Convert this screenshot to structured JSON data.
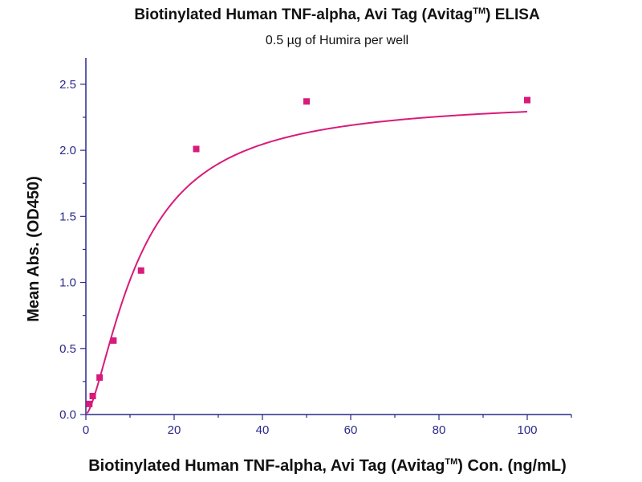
{
  "chart_data": {
    "type": "scatter",
    "title": "Biotinylated Human TNF-alpha, Avi Tag (Avitag",
    "title_superscript": "TM",
    "title_suffix": ") ELISA",
    "subtitle": "0.5 µg of Humira per well",
    "xlabel": "Biotinylated Human TNF-alpha, Avi Tag (Avitag",
    "xlabel_superscript": "TM",
    "xlabel_suffix": ") Con. (ng/mL)",
    "ylabel": "Mean Abs. (OD450)",
    "xlim": [
      0,
      110
    ],
    "ylim": [
      0,
      2.7
    ],
    "x_ticks": [
      0,
      20,
      40,
      60,
      80,
      100
    ],
    "y_ticks": [
      0.0,
      0.5,
      1.0,
      1.5,
      2.0,
      2.5
    ],
    "x_minor_ticks": [
      10,
      30,
      50,
      70,
      90,
      110
    ],
    "y_minor_ticks": [
      0.25,
      0.75,
      1.25,
      1.75,
      2.25
    ],
    "grid": false,
    "series": [
      {
        "points": [
          {
            "x": 0.78,
            "y": 0.08
          },
          {
            "x": 1.56,
            "y": 0.14
          },
          {
            "x": 3.12,
            "y": 0.28
          },
          {
            "x": 6.25,
            "y": 0.56
          },
          {
            "x": 12.5,
            "y": 1.09
          },
          {
            "x": 25,
            "y": 2.01
          },
          {
            "x": 50,
            "y": 2.37
          },
          {
            "x": 100,
            "y": 2.38
          }
        ],
        "fit": {
          "type": "sigmoid",
          "top": 2.39,
          "ec50": 12.2,
          "hill": 1.5
        }
      }
    ],
    "colors": {
      "marker": "#d81b7a",
      "line": "#d81b7a",
      "axis": "#2a2a8a"
    }
  }
}
